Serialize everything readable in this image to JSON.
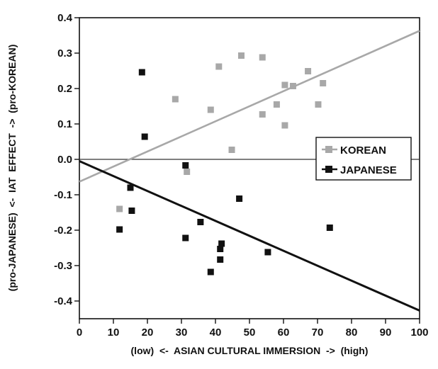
{
  "chart_data": {
    "type": "scatter",
    "xlabel": "(low)  <-  ASIAN CULTURAL IMMERSION  ->  (high)",
    "ylabel": "(pro-JAPANESE)  <-  IAT  EFFECT  ->  (pro-KOREAN)",
    "xlim": [
      0,
      100
    ],
    "ylim": [
      -0.45,
      0.4
    ],
    "x_ticks": [
      "0",
      "10",
      "20",
      "30",
      "40",
      "50",
      "60",
      "70",
      "80",
      "90",
      "100"
    ],
    "y_ticks": [
      "0.4",
      "0.3",
      "0.2",
      "0.1",
      "0.0",
      "-0.1",
      "-0.2",
      "-0.3",
      "-0.4"
    ],
    "x_tick_values": [
      0,
      10,
      20,
      30,
      40,
      50,
      60,
      70,
      80,
      90,
      100
    ],
    "y_tick_values": [
      0.4,
      0.3,
      0.2,
      0.1,
      0.0,
      -0.1,
      -0.2,
      -0.3,
      -0.4
    ],
    "zero_line": 0.0,
    "grid": false,
    "legend_position": "right",
    "series": [
      {
        "name": "KOREAN",
        "color": "#a8a8a8",
        "marker": "square",
        "points": [
          [
            11.8,
            -0.14
          ],
          [
            28.2,
            0.17
          ],
          [
            31.6,
            -0.035
          ],
          [
            38.6,
            0.14
          ],
          [
            41.0,
            0.262
          ],
          [
            44.8,
            0.027
          ],
          [
            47.6,
            0.293
          ],
          [
            53.8,
            0.288
          ],
          [
            53.8,
            0.127
          ],
          [
            58.0,
            0.155
          ],
          [
            60.4,
            0.21
          ],
          [
            60.4,
            0.096
          ],
          [
            62.8,
            0.207
          ],
          [
            67.2,
            0.249
          ],
          [
            70.2,
            0.155
          ],
          [
            71.6,
            0.215
          ]
        ],
        "trend": {
          "x": [
            0,
            100
          ],
          "y": [
            -0.063,
            0.363
          ]
        }
      },
      {
        "name": "JAPANESE",
        "color": "#111111",
        "marker": "square",
        "points": [
          [
            11.8,
            -0.198
          ],
          [
            15.0,
            -0.08
          ],
          [
            15.4,
            -0.145
          ],
          [
            18.4,
            0.246
          ],
          [
            19.2,
            0.064
          ],
          [
            31.2,
            -0.017
          ],
          [
            31.2,
            -0.222
          ],
          [
            35.6,
            -0.177
          ],
          [
            38.6,
            -0.318
          ],
          [
            41.4,
            -0.253
          ],
          [
            41.4,
            -0.283
          ],
          [
            41.8,
            -0.238
          ],
          [
            47.0,
            -0.111
          ],
          [
            55.4,
            -0.262
          ],
          [
            73.6,
            -0.193
          ]
        ],
        "trend": {
          "x": [
            0,
            100
          ],
          "y": [
            -0.005,
            -0.427
          ]
        }
      }
    ]
  }
}
